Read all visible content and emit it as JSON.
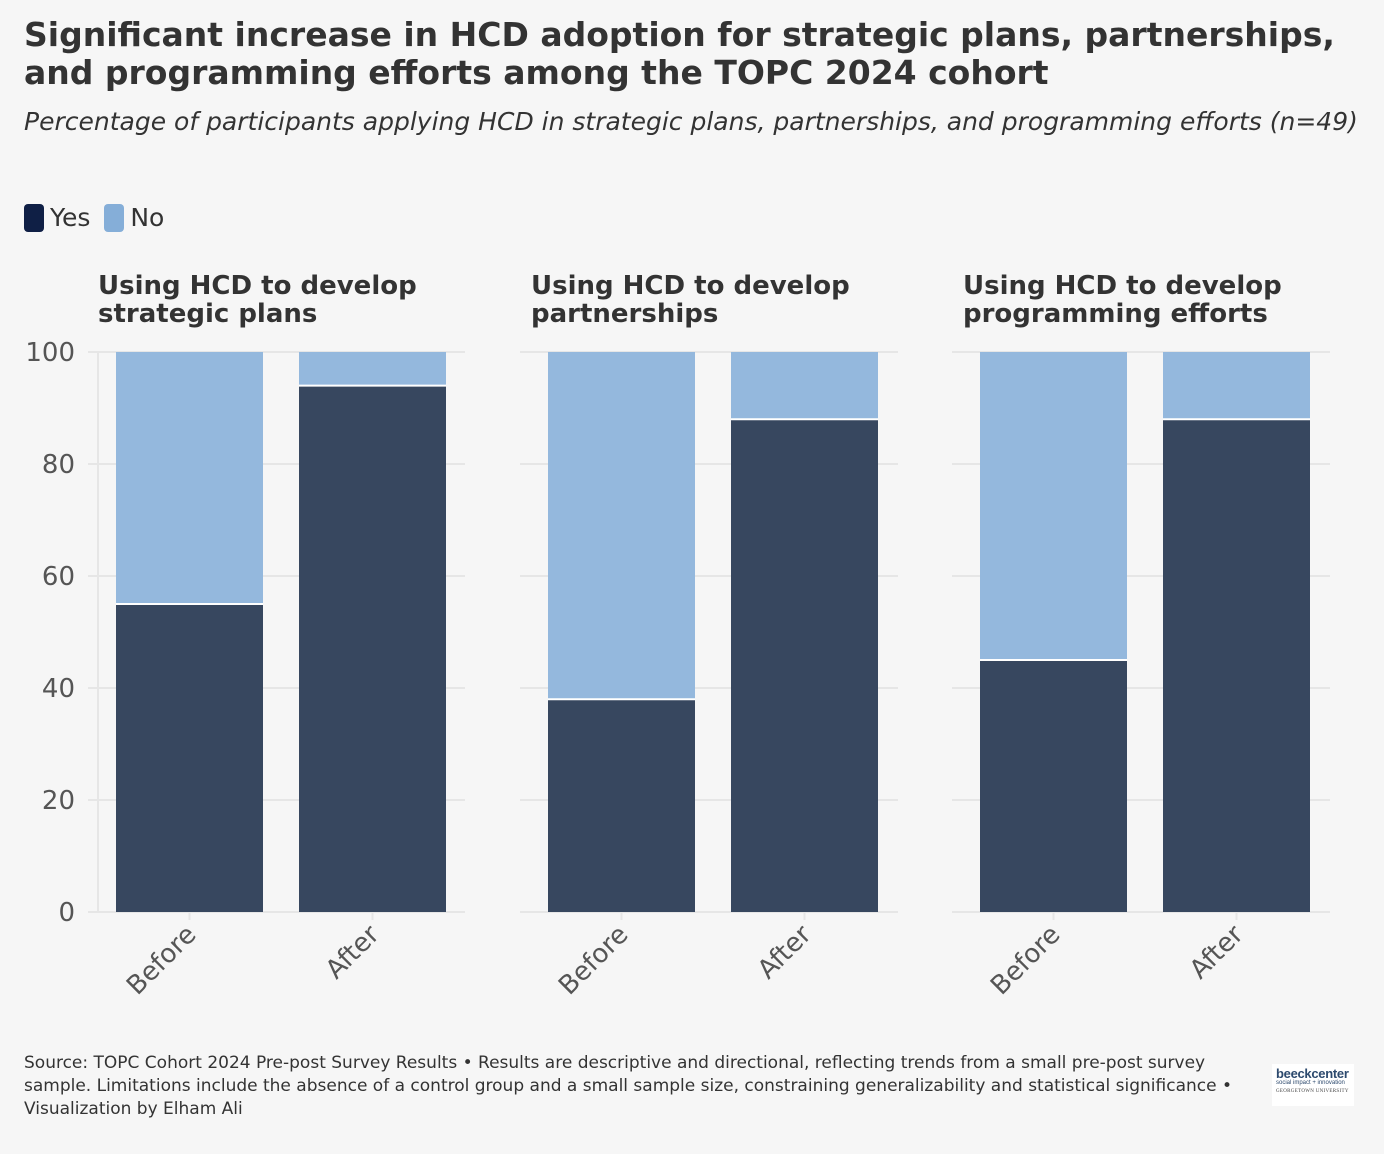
{
  "title": "Significant increase in HCD adoption for strategic plans, partnerships, and programming efforts among the TOPC 2024 cohort",
  "subtitle": "Percentage of participants applying HCD in strategic plans, partnerships, and programming efforts (n=49)",
  "legend": [
    {
      "label": "Yes",
      "color": "#0f1f45"
    },
    {
      "label": "No",
      "color": "#85aed8"
    }
  ],
  "footer": "Source: TOPC Cohort 2024 Pre-post Survey Results • Results are descriptive and directional, reflecting trends from a small pre-post survey sample. Limitations include the absence of a control group and a small sample size, constraining generalizability and statistical significance • Visualization by Elham Ali",
  "logo": {
    "main": "beeckcenter",
    "sub": "social impact + innovation",
    "university": "GEORGETOWN UNIVERSITY"
  },
  "colors": {
    "yes_bar": "#37475f",
    "no_bar": "#94b8dd",
    "grid": "#e6e6e6",
    "axis_text": "#555555"
  },
  "chart_data": [
    {
      "type": "bar",
      "stacked": true,
      "title": "Using HCD to develop strategic plans",
      "categories": [
        "Before",
        "After"
      ],
      "series": [
        {
          "name": "Yes",
          "values": [
            55,
            94
          ]
        },
        {
          "name": "No",
          "values": [
            45,
            6
          ]
        }
      ],
      "ylim": [
        0,
        100
      ],
      "yticks": [
        0,
        20,
        40,
        60,
        80,
        100
      ],
      "grid": true
    },
    {
      "type": "bar",
      "stacked": true,
      "title": "Using HCD to develop partnerships",
      "categories": [
        "Before",
        "After"
      ],
      "series": [
        {
          "name": "Yes",
          "values": [
            38,
            88
          ]
        },
        {
          "name": "No",
          "values": [
            62,
            12
          ]
        }
      ],
      "ylim": [
        0,
        100
      ],
      "yticks": [
        0,
        20,
        40,
        60,
        80,
        100
      ],
      "grid": true
    },
    {
      "type": "bar",
      "stacked": true,
      "title": "Using HCD to develop programming efforts",
      "categories": [
        "Before",
        "After"
      ],
      "series": [
        {
          "name": "Yes",
          "values": [
            45,
            88
          ]
        },
        {
          "name": "No",
          "values": [
            55,
            12
          ]
        }
      ],
      "ylim": [
        0,
        100
      ],
      "yticks": [
        0,
        20,
        40,
        60,
        80,
        100
      ],
      "grid": true
    }
  ]
}
